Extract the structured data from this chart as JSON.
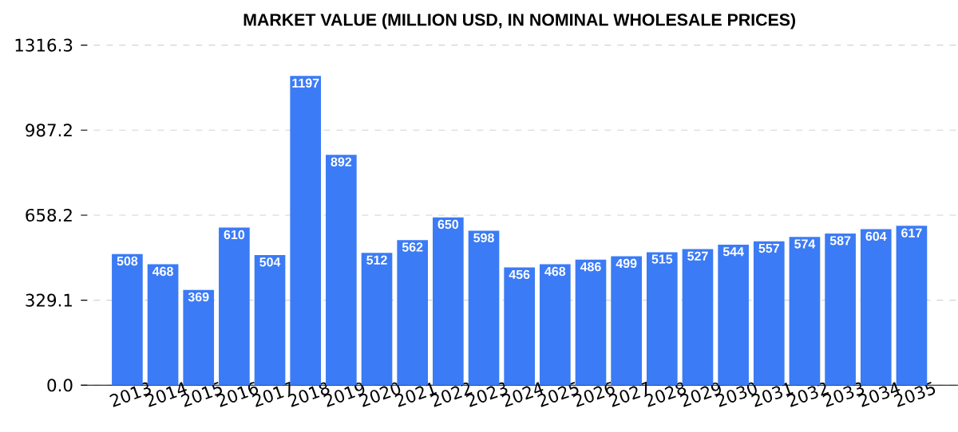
{
  "chart_data": {
    "type": "bar",
    "title": "MARKET VALUE (MILLION USD, IN NOMINAL WHOLESALE PRICES)",
    "categories": [
      "2013",
      "2014",
      "2015",
      "2016",
      "2017",
      "2018",
      "2019",
      "2020",
      "2021",
      "2022",
      "2023",
      "2024",
      "2025",
      "2026",
      "2027",
      "2028",
      "2029",
      "2030",
      "2031",
      "2032",
      "2033",
      "2034",
      "2035"
    ],
    "values": [
      508,
      468,
      369,
      610,
      504,
      1197,
      892,
      512,
      562,
      650,
      598,
      456,
      468,
      486,
      499,
      515,
      527,
      544,
      557,
      574,
      587,
      604,
      617
    ],
    "color": "#3b7bf5",
    "ylim": [
      0,
      1316.3
    ],
    "yticks": [
      {
        "value": 0,
        "label": "0.0"
      },
      329.1,
      658.2,
      987.2,
      1316.3
    ],
    "grid": "y",
    "data_labels": true
  }
}
